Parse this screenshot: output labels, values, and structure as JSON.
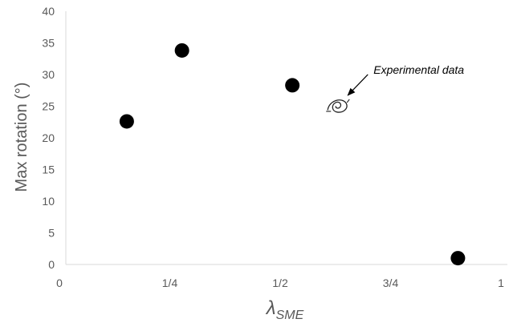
{
  "chart_data": {
    "type": "scatter",
    "title": "",
    "xlabel": "λ",
    "xlabel_subscript": "SME",
    "ylabel": "Max rotation (°)",
    "xlim": [
      0,
      1
    ],
    "ylim": [
      0,
      40
    ],
    "x_ticks": [
      {
        "value": 0,
        "label": "0"
      },
      {
        "value": 0.25,
        "label": "1/4"
      },
      {
        "value": 0.5,
        "label": "1/2"
      },
      {
        "value": 0.75,
        "label": "3/4"
      },
      {
        "value": 1,
        "label": "1"
      }
    ],
    "y_ticks": [
      0,
      5,
      10,
      15,
      20,
      25,
      30,
      35,
      40
    ],
    "grid": false,
    "series": [
      {
        "x": [
          0.138,
          0.263,
          0.513,
          0.888
        ],
        "y": [
          22.6,
          33.8,
          28.3,
          1.0
        ],
        "color": "#000000"
      }
    ],
    "annotations": [
      {
        "text": "Experimental data",
        "point_x": 0.615,
        "point_y": 25.2,
        "icon": "spiral-swirl-icon"
      }
    ]
  }
}
